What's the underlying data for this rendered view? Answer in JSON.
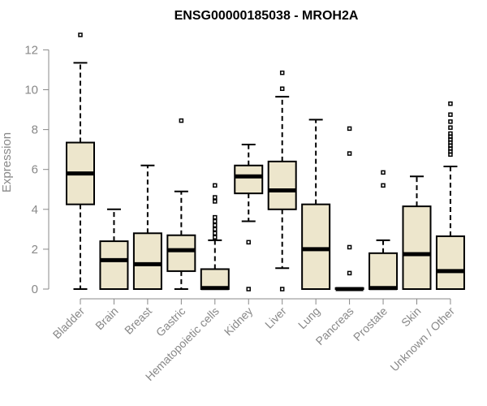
{
  "chart_data": {
    "type": "box",
    "title": "ENSG00000185038 - MROH2A",
    "xlabel": "",
    "ylabel": "Expression",
    "ylim": [
      0,
      12.6
    ],
    "yticks": [
      0,
      2,
      4,
      6,
      8,
      10,
      12
    ],
    "grid": false,
    "colors": {
      "box_fill": "#ede6cc",
      "box_stroke": "#000000",
      "axis": "#888888"
    },
    "categories": [
      "Bladder",
      "Brain",
      "Breast",
      "Gastric",
      "Hematopoietic cells",
      "Kidney",
      "Liver",
      "Lung",
      "Pancreas",
      "Prostate",
      "Skin",
      "Unknown / Other"
    ],
    "boxes": [
      {
        "name": "Bladder",
        "whisker_low": 0,
        "q1": 4.25,
        "median": 5.8,
        "q3": 7.35,
        "whisker_high": 11.35,
        "outliers": [
          12.75
        ]
      },
      {
        "name": "Brain",
        "whisker_low": 0,
        "q1": 0,
        "median": 1.45,
        "q3": 2.4,
        "whisker_high": 4.0,
        "outliers": []
      },
      {
        "name": "Breast",
        "whisker_low": 0,
        "q1": 0,
        "median": 1.25,
        "q3": 2.8,
        "whisker_high": 6.2,
        "outliers": []
      },
      {
        "name": "Gastric",
        "whisker_low": 0,
        "q1": 0.9,
        "median": 1.95,
        "q3": 2.7,
        "whisker_high": 4.9,
        "outliers": [
          8.45
        ]
      },
      {
        "name": "Hematopoietic cells",
        "whisker_low": 0,
        "q1": 0,
        "median": 0.05,
        "q3": 1.0,
        "whisker_high": 2.45,
        "outliers": [
          2.6,
          2.8,
          3.0,
          3.2,
          3.4,
          3.6,
          4.4,
          4.6,
          5.2
        ]
      },
      {
        "name": "Kidney",
        "whisker_low": 3.4,
        "q1": 4.8,
        "median": 5.65,
        "q3": 6.2,
        "whisker_high": 7.25,
        "outliers": [
          2.35,
          0
        ]
      },
      {
        "name": "Liver",
        "whisker_low": 1.05,
        "q1": 4.0,
        "median": 4.95,
        "q3": 6.4,
        "whisker_high": 9.65,
        "outliers": [
          10.05,
          10.85,
          0
        ]
      },
      {
        "name": "Lung",
        "whisker_low": 0,
        "q1": 0,
        "median": 2.0,
        "q3": 4.25,
        "whisker_high": 8.5,
        "outliers": []
      },
      {
        "name": "Pancreas",
        "whisker_low": 0,
        "q1": 0,
        "median": 0,
        "q3": 0.05,
        "whisker_high": 0.05,
        "outliers": [
          0.8,
          2.1,
          6.8,
          8.05
        ]
      },
      {
        "name": "Prostate",
        "whisker_low": 0,
        "q1": 0,
        "median": 0.05,
        "q3": 1.8,
        "whisker_high": 2.45,
        "outliers": [
          5.2,
          5.85
        ]
      },
      {
        "name": "Skin",
        "whisker_low": 0,
        "q1": 0,
        "median": 1.75,
        "q3": 4.15,
        "whisker_high": 5.65,
        "outliers": []
      },
      {
        "name": "Unknown / Other",
        "whisker_low": 0,
        "q1": 0,
        "median": 0.9,
        "q3": 2.65,
        "whisker_high": 6.15,
        "outliers": [
          6.75,
          6.9,
          7.05,
          7.2,
          7.35,
          7.5,
          7.65,
          7.8,
          8.1,
          8.4,
          8.75,
          9.3
        ]
      }
    ]
  }
}
